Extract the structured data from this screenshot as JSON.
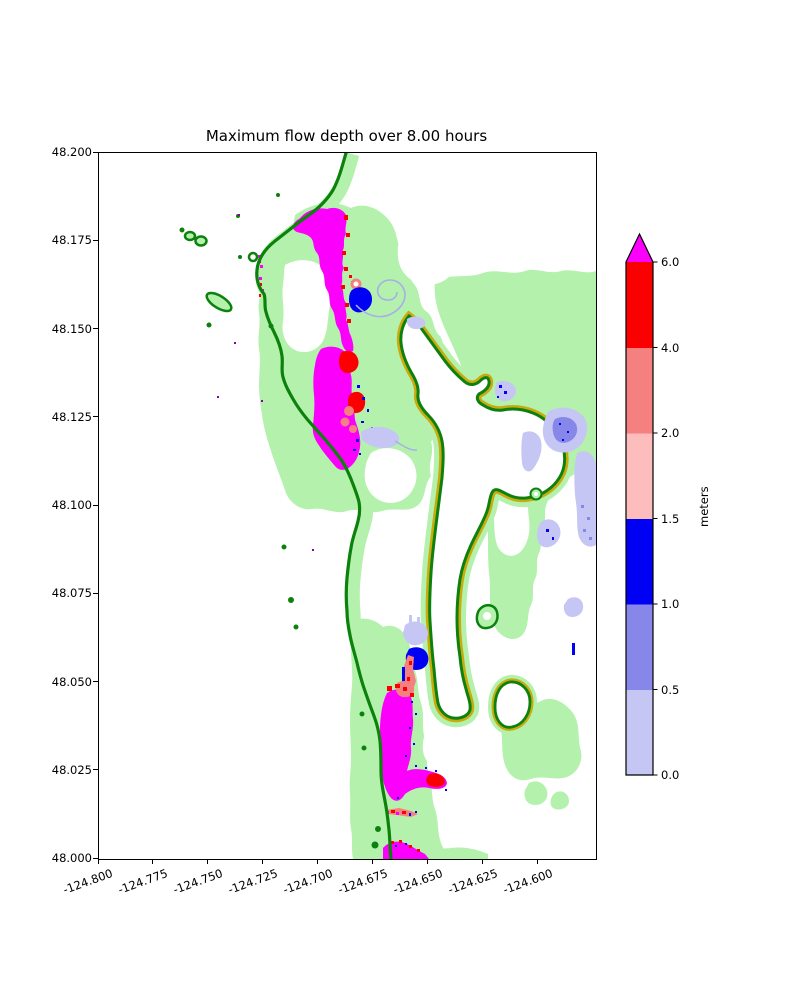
{
  "figure": {
    "title": "Maximum flow depth over 8.00 hours",
    "background_color": "#ffffff"
  },
  "chart_data": {
    "type": "heatmap",
    "title": "Maximum flow depth over 8.00 hours",
    "xlabel": "",
    "ylabel": "",
    "grid": false,
    "x_axis": {
      "unit": "degrees longitude",
      "range": [
        -124.8,
        -124.574
      ],
      "tick_labels": [
        "-124.800",
        "-124.775",
        "-124.750",
        "-124.725",
        "-124.700",
        "-124.675",
        "-124.650",
        "-124.625",
        "-124.600"
      ],
      "tick_rotation_deg": 20
    },
    "y_axis": {
      "unit": "degrees latitude",
      "range": [
        48.0,
        48.2
      ],
      "tick_labels": [
        "48.200",
        "48.175",
        "48.150",
        "48.125",
        "48.100",
        "48.075",
        "48.050",
        "48.025",
        "48.000"
      ]
    },
    "colorbar": {
      "label": "meters",
      "levels": [
        0.0,
        0.5,
        1.0,
        1.5,
        2.0,
        4.0,
        6.0
      ],
      "tick_labels": [
        "0.0",
        "0.5",
        "1.0",
        "1.5",
        "2.0",
        "4.0",
        "6.0"
      ],
      "segment_colors": [
        "#c6c6f4",
        "#8787ea",
        "#0000f5",
        "#fdbdbd",
        "#f58080",
        "#fb0000"
      ],
      "over_color": "#fb00fb",
      "extend": "max",
      "position": "right"
    },
    "colors": {
      "ocean_and_dry": "#ffffff",
      "land": "#b4f1ad",
      "shoreline": "#0c810c",
      "elevation_contour": "#c9ab10",
      "flood_magenta": "#fb00fb",
      "flood_red": "#fb0000",
      "flood_salmon": "#f58080",
      "flood_pink": "#fdbdbd",
      "flood_blue": "#0000f5",
      "flood_violet": "#8787ea",
      "flood_lavender": "#c6c6f4",
      "micro_dot_purple": "#8800aa",
      "frame": "#000000"
    },
    "features": [
      {
        "name": "pacific-coastline",
        "style": "thick dark-green contour running N-S along west side"
      },
      {
        "name": "lake-ozette",
        "style": "large white lake, dark-green shoreline with gold elevation contour outside, two islands"
      },
      {
        "name": "pond-south-of-lake",
        "style": "small white pond ringed by gold and green contours"
      },
      {
        "name": "offshore-islets",
        "style": "small dark-green ringed islets near upper-left coast (Ozette Island group)"
      },
      {
        "name": "flood-estuary-north",
        "approx_lon": [
          -124.707,
          -124.686
        ],
        "approx_lat": [
          48.168,
          48.183
        ],
        "depth": "mostly > 6 m (magenta) with red fringe, blue pool downstream"
      },
      {
        "name": "flood-coastal-plain-mid",
        "approx_lon": [
          -124.703,
          -124.681
        ],
        "approx_lat": [
          48.11,
          48.145
        ],
        "depth": "> 6 m (magenta) with red and 2-4 m salmon patches, blue specks"
      },
      {
        "name": "flood-stream-lake-west",
        "approx_lon": [
          -124.662,
          -124.65
        ],
        "approx_lat": [
          48.053,
          48.068
        ],
        "depth": "0.5-1.5 m blues with 2-4 m salmon ribbon"
      },
      {
        "name": "flood-bottom-valley",
        "approx_lon": [
          -124.672,
          -124.642
        ],
        "approx_lat": [
          48.016,
          48.048
        ],
        "depth": "> 6 m (magenta) with red arm to east"
      },
      {
        "name": "flood-south-edge",
        "approx_lon": [
          -124.671,
          -124.65
        ],
        "approx_lat": [
          48.0,
          48.005
        ],
        "depth": "> 6 m (magenta) with red/blue fringe"
      },
      {
        "name": "shallow-ponding-east-of-lake",
        "approx_lon": [
          -124.6,
          -124.585
        ],
        "approx_lat": [
          48.09,
          48.13
        ],
        "depth": "0-1 m lavender/violet patches"
      }
    ]
  }
}
